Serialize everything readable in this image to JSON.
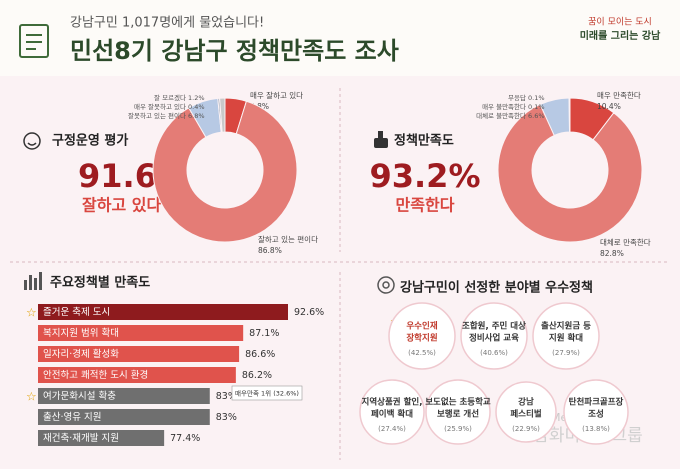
{
  "header": {
    "subtitle": "강남구민 1,017명에게 물었습니다!",
    "title": "민선8기 강남구 정책만족도 조사",
    "logo_line1": "꿈이 모이는 도시",
    "logo_line2": "미래를 그리는 강남"
  },
  "chart_data": [
    {
      "type": "pie",
      "title": "구정운영 평가",
      "headline": "91.6%",
      "headline_label": "잘하고 있다",
      "categories": [
        "매우 잘하고 있다",
        "잘하고 있는 편이다",
        "잘못하고 있는 편이다",
        "매우 잘못하고 있다",
        "잘 모르겠다"
      ],
      "values": [
        4.8,
        86.8,
        6.8,
        0.4,
        1.2
      ],
      "value_labels": [
        "4.8%",
        "86.8%",
        "6.8%",
        "0.4%",
        "1.2%"
      ],
      "colors": [
        "#d9463f",
        "#e47c76",
        "#b7c9e4",
        "#9aa7b8",
        "#c9c9c9"
      ]
    },
    {
      "type": "pie",
      "title": "정책만족도",
      "headline": "93.2%",
      "headline_label": "만족한다",
      "categories": [
        "매우 만족한다",
        "대체로 만족한다",
        "대체로 불만족한다",
        "매우 불만족한다",
        "무응답"
      ],
      "values": [
        10.4,
        82.8,
        6.6,
        0.1,
        0.1
      ],
      "value_labels": [
        "10.4%",
        "82.8%",
        "6.6%",
        "0.1%",
        "0.1%"
      ],
      "colors": [
        "#d9463f",
        "#e47c76",
        "#b7c9e4",
        "#9aa7b8",
        "#c9c9c9"
      ]
    },
    {
      "type": "bar",
      "title": "주요정책별 만족도",
      "categories": [
        "즐거운 축제 도시",
        "복지지원 범위 확대",
        "일자리·경제 활성화",
        "안전하고 쾌적한 도시 환경",
        "여가문화시설 확충",
        "출산·영유 지원",
        "재건축·재개발 지원"
      ],
      "values": [
        92.6,
        87.1,
        86.6,
        86.2,
        83,
        83,
        77.4
      ],
      "value_labels": [
        "92.6%",
        "87.1%",
        "86.6%",
        "86.2%",
        "83%",
        "83%",
        "77.4%"
      ],
      "colors": [
        "#8e1b1e",
        "#e0534c",
        "#e0534c",
        "#e0534c",
        "#6f6f6f",
        "#6f6f6f",
        "#6f6f6f"
      ],
      "annotation": "매우만족 1위 (32.6%)"
    }
  ],
  "policy_picks": {
    "title": "강남구민이 선정한 분야별 우수정책",
    "items": [
      {
        "lines": [
          "우수인재",
          "장학지원"
        ],
        "share": "(42.5%)"
      },
      {
        "lines": [
          "조합원, 주민 대상",
          "정비사업 교육"
        ],
        "share": "(40.6%)"
      },
      {
        "lines": [
          "출산지원금 등",
          "지원 확대"
        ],
        "share": "(27.9%)"
      },
      {
        "lines": [
          "지역상품권 할인,",
          "페이백 확대"
        ],
        "share": "(27.4%)"
      },
      {
        "lines": [
          "보도없는 초등학교",
          "보행로 개선"
        ],
        "share": "(25.9%)"
      },
      {
        "lines": [
          "강남",
          "페스티벌"
        ],
        "share": "(22.9%)"
      },
      {
        "lines": [
          "탄천파크골프장",
          "조성"
        ],
        "share": "(13.8%)"
      }
    ]
  },
  "watermark": {
    "latin": "DamhwaMediaGroup",
    "korean": "담화미디어그룹"
  }
}
